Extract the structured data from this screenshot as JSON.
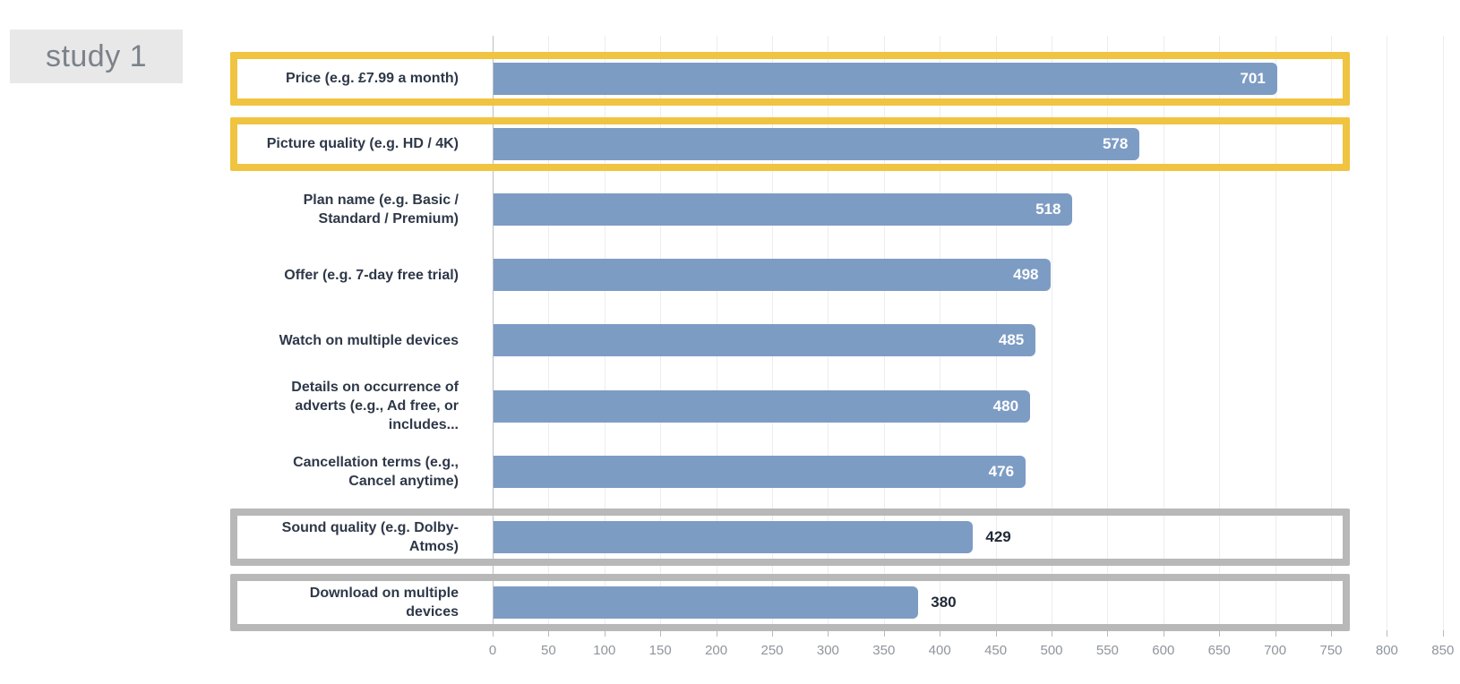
{
  "study_label": "study 1",
  "chart_data": {
    "type": "bar",
    "orientation": "horizontal",
    "title": "",
    "xlabel": "",
    "ylabel": "",
    "categories": [
      "Price (e.g. £7.99 a month)",
      "Picture quality (e.g. HD / 4K)",
      "Plan name (e.g. Basic /\nStandard / Premium)",
      "Offer (e.g. 7-day free trial)",
      "Watch on multiple devices",
      "Details on occurrence of\nadverts (e.g., Ad free, or\nincludes...",
      "Cancellation terms (e.g.,\nCancel anytime)",
      "Sound quality (e.g. Dolby-\nAtmos)",
      "Download on multiple\ndevices"
    ],
    "values": [
      701,
      578,
      518,
      498,
      485,
      480,
      476,
      429,
      380
    ],
    "value_labels": [
      "701",
      "578",
      "518",
      "498",
      "485",
      "480",
      "476",
      "429",
      "380"
    ],
    "highlights": [
      "yellow",
      "yellow",
      null,
      null,
      null,
      null,
      null,
      "gray",
      "gray"
    ],
    "x_ticks": [
      0,
      50,
      100,
      150,
      200,
      250,
      300,
      350,
      400,
      450,
      500,
      550,
      600,
      650,
      700,
      750,
      800,
      850
    ],
    "xlim": [
      0,
      850
    ],
    "grid": "vertical",
    "legend": "none",
    "colors": {
      "bar": "#7d9cc4",
      "highlight_yellow": "#f0c440",
      "highlight_gray": "#b8b8b8",
      "value_inside_text": "#ffffff",
      "value_outside_text": "#222b38",
      "category_text": "#2e3848",
      "tick_text": "#8f959c",
      "study_label_bg": "#e8e8e8",
      "study_label_text": "#7c828a"
    }
  }
}
